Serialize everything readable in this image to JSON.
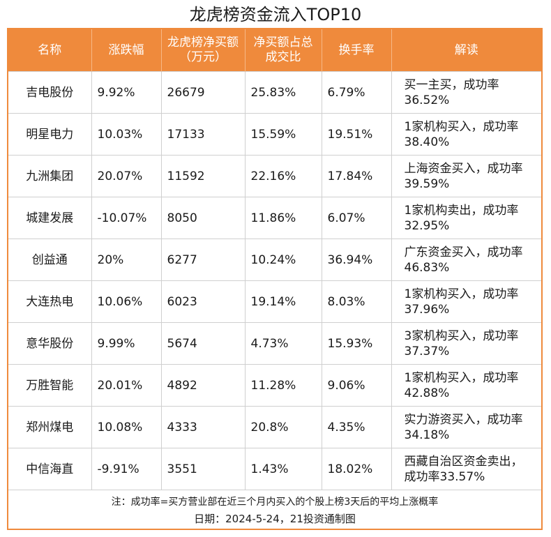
{
  "title": "龙虎榜资金流入TOP10",
  "headers": [
    "名称",
    "涨跌幅",
    "龙虎榜净买额（万元）",
    "净买额占总成交比",
    "换手率",
    "解读"
  ],
  "rows": [
    {
      "name": "吉电股份",
      "change": "9.92%",
      "net_buy": "26679",
      "ratio": "25.83%",
      "turnover": "6.79%",
      "note": "买一主买，成功率36.52%"
    },
    {
      "name": "明星电力",
      "change": "10.03%",
      "net_buy": "17133",
      "ratio": "15.59%",
      "turnover": "19.51%",
      "note": "1家机构买入，成功率38.40%"
    },
    {
      "name": "九洲集团",
      "change": "20.07%",
      "net_buy": "11592",
      "ratio": "22.16%",
      "turnover": "17.84%",
      "note": "上海资金买入，成功率39.59%"
    },
    {
      "name": "城建发展",
      "change": "-10.07%",
      "net_buy": "8050",
      "ratio": "11.86%",
      "turnover": "6.07%",
      "note": "1家机构卖出，成功率32.95%"
    },
    {
      "name": "创益通",
      "change": "20%",
      "net_buy": "6277",
      "ratio": "10.24%",
      "turnover": "36.94%",
      "note": "广东资金买入，成功率46.83%"
    },
    {
      "name": "大连热电",
      "change": "10.06%",
      "net_buy": "6023",
      "ratio": "19.14%",
      "turnover": "8.03%",
      "note": "1家机构买入，成功率37.96%"
    },
    {
      "name": "意华股份",
      "change": "9.99%",
      "net_buy": "5674",
      "ratio": "4.73%",
      "turnover": "15.93%",
      "note": "3家机构买入，成功率37.37%"
    },
    {
      "name": "万胜智能",
      "change": "20.01%",
      "net_buy": "4892",
      "ratio": "11.28%",
      "turnover": "9.06%",
      "note": "1家机构买入，成功率42.88%"
    },
    {
      "name": "郑州煤电",
      "change": "10.08%",
      "net_buy": "4333",
      "ratio": "20.8%",
      "turnover": "4.35%",
      "note": "实力游资买入，成功率34.18%"
    },
    {
      "name": "中信海直",
      "change": "-9.91%",
      "net_buy": "3551",
      "ratio": "1.43%",
      "turnover": "18.02%",
      "note": "西藏自治区资金卖出，成功率33.57%"
    }
  ],
  "footer": {
    "note": "注：成功率=买方营业部在近三个月内买入的个股上榜3天后的平均上涨概率",
    "date": "日期：2024-5-24，21投资通制图"
  },
  "colors": {
    "header_bg": "#ef8a3c",
    "border": "#cfcfcf"
  }
}
